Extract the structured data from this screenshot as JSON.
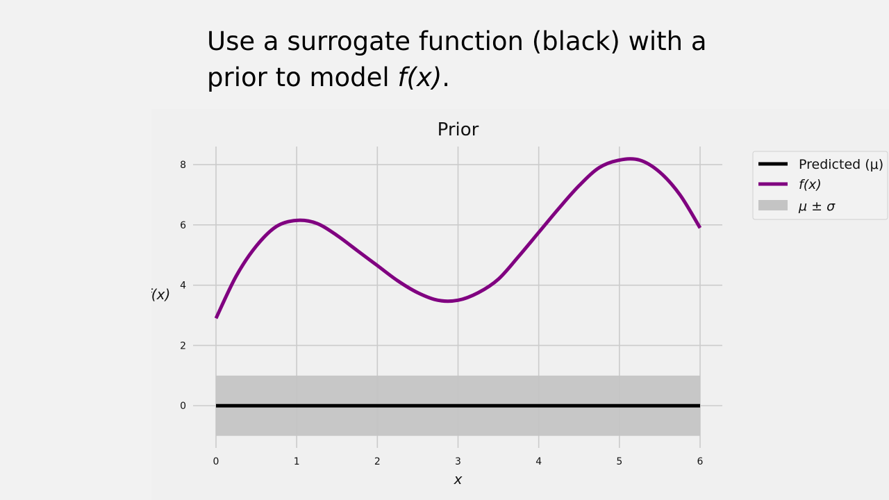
{
  "slide": {
    "title_line1": "Use a surrogate function (black) with a",
    "title_line2_prefix": "prior to model ",
    "title_line2_italic": "f(x)",
    "title_line2_suffix": "."
  },
  "chart_data": {
    "type": "line",
    "title": "Prior",
    "xlabel": "x",
    "ylabel": "f(x)",
    "xlim": [
      0,
      6
    ],
    "ylim": [
      -1.4,
      8.6
    ],
    "xticks": [
      0,
      1,
      2,
      3,
      4,
      5,
      6
    ],
    "yticks": [
      0,
      2,
      4,
      6,
      8
    ],
    "grid": true,
    "legend_placement": "outside-right-top",
    "series": [
      {
        "name": "Predicted (μ)",
        "kind": "line",
        "color": "#000000",
        "x": [
          0,
          6
        ],
        "y": [
          0,
          0
        ]
      },
      {
        "name": "f(x)",
        "kind": "line",
        "color": "#800080",
        "x": [
          0,
          0.25,
          0.5,
          0.75,
          1.0,
          1.25,
          1.5,
          1.75,
          2.0,
          2.25,
          2.5,
          2.75,
          3.0,
          3.25,
          3.5,
          3.75,
          4.0,
          4.25,
          4.5,
          4.75,
          5.0,
          5.25,
          5.5,
          5.75,
          6.0
        ],
        "y": [
          2.9,
          4.3,
          5.3,
          5.95,
          6.15,
          6.05,
          5.65,
          5.15,
          4.65,
          4.15,
          3.75,
          3.5,
          3.5,
          3.75,
          4.2,
          4.95,
          5.75,
          6.55,
          7.3,
          7.9,
          8.15,
          8.15,
          7.75,
          7.0,
          5.9
        ]
      },
      {
        "name": "μ ± σ",
        "kind": "band",
        "color": "#c4c4c4",
        "x": [
          0,
          6
        ],
        "lower": [
          -1,
          -1
        ],
        "upper": [
          1,
          1
        ]
      }
    ]
  }
}
